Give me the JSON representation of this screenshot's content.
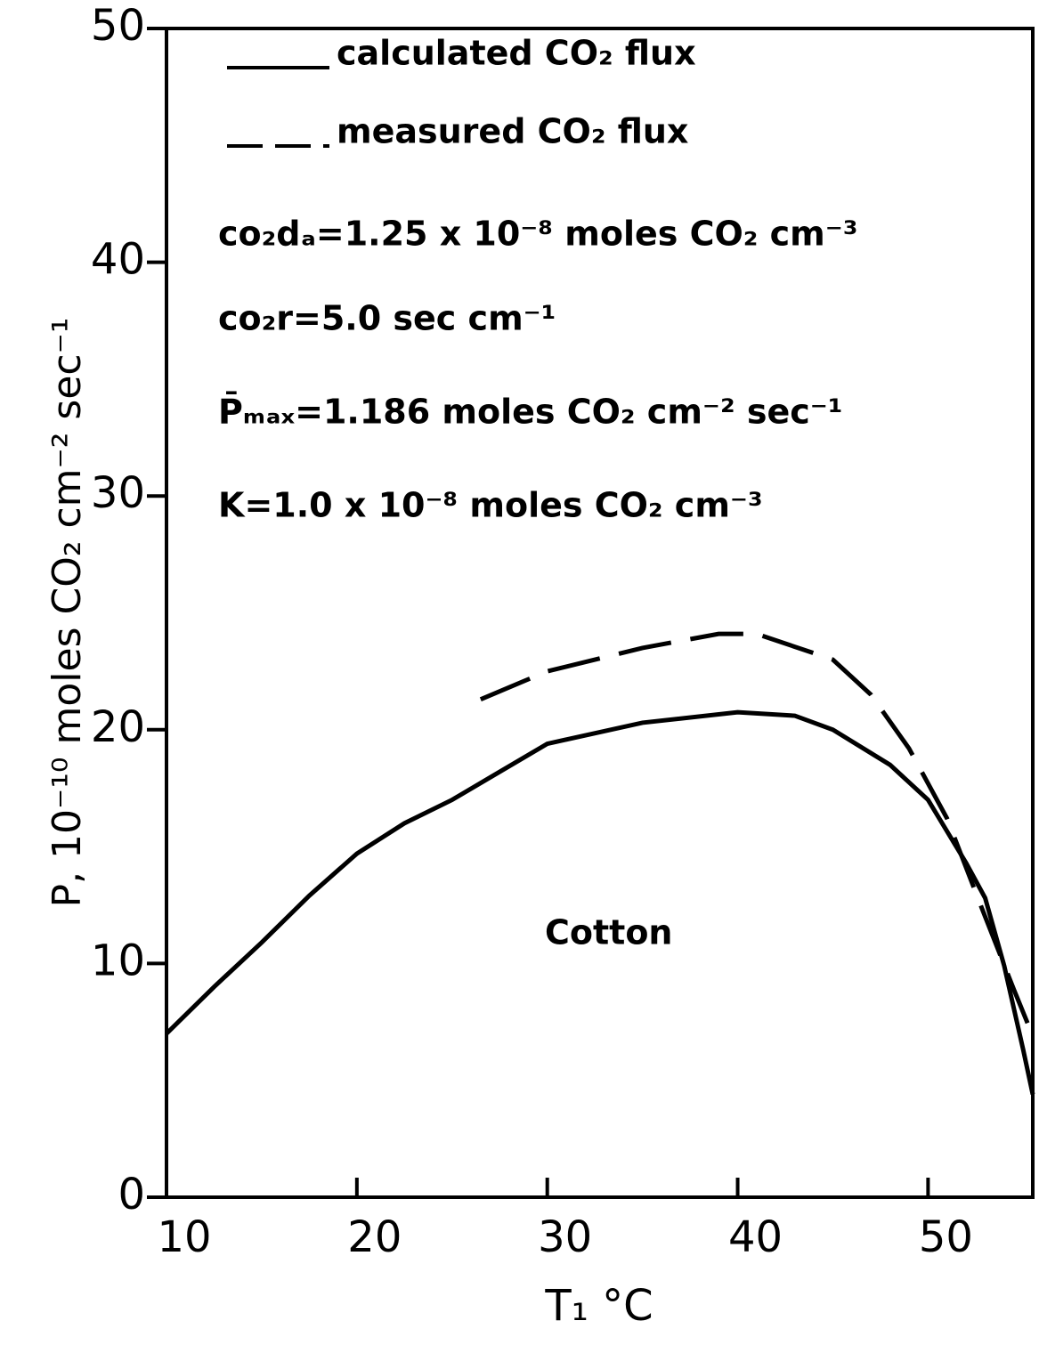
{
  "chart_data": {
    "type": "line",
    "xlabel": "T₁ °C",
    "ylabel": "P, 10⁻¹⁰ moles CO₂ cm⁻² sec⁻¹",
    "xlim": [
      10,
      55.5
    ],
    "ylim": [
      0,
      50
    ],
    "xticks": [
      10,
      20,
      30,
      40,
      50
    ],
    "yticks": [
      0,
      10,
      20,
      30,
      40,
      50
    ],
    "grid": false,
    "legend": "upper left",
    "series": [
      {
        "name": "calculated CO₂ flux",
        "color": "#000000",
        "style": "solid",
        "x": [
          10,
          12.5,
          15,
          17.5,
          20,
          22.5,
          25,
          27.5,
          30,
          35,
          40,
          43,
          45,
          48,
          50,
          52,
          53,
          54,
          55,
          55.5
        ],
        "values": [
          7.0,
          9.0,
          10.9,
          12.9,
          14.7,
          16.0,
          17.0,
          18.2,
          19.4,
          20.3,
          20.75,
          20.6,
          20.0,
          18.5,
          17.0,
          14.3,
          12.8,
          9.9,
          6.3,
          4.4
        ]
      },
      {
        "name": "measured CO₂ flux",
        "color": "#000000",
        "style": "dashed",
        "x": [
          26.5,
          30,
          35,
          39,
          41,
          45,
          47,
          49,
          51,
          53,
          54.5,
          55.5
        ],
        "values": [
          21.3,
          22.5,
          23.5,
          24.1,
          24.1,
          23.0,
          21.5,
          19.2,
          16.2,
          12.0,
          8.9,
          6.9
        ]
      }
    ],
    "annotations": [
      "co₂dₐ=1.25 x 10⁻⁸ moles CO₂ cm⁻³",
      "co₂r=5.0 sec cm⁻¹",
      "P̄ₘₐₓ=1.186 moles CO₂ cm⁻² sec⁻¹",
      "K=1.0 x 10⁻⁸ moles CO₂ cm⁻³",
      "Cotton"
    ]
  }
}
